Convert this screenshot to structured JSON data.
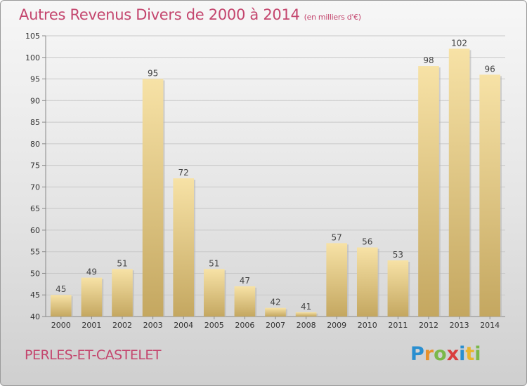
{
  "title": "Autres Revenus Divers de 2000 à 2014",
  "subtitle": "(en milliers d'€)",
  "place": "PERLES-ET-CASTELET",
  "logo": {
    "letters": [
      "P",
      "r",
      "o",
      "x",
      "i",
      "t",
      "i"
    ],
    "colors": [
      "#2a8fd0",
      "#e8912c",
      "#7bb84a",
      "#d93e3e",
      "#2a8fd0",
      "#e8b52c",
      "#7bb84a"
    ]
  },
  "colors": {
    "title": "#c4466e",
    "bar_top": "#f7e2a6",
    "bar_bottom": "#c4a760",
    "grid": "#c8c8c8"
  },
  "chart_data": {
    "type": "bar",
    "categories": [
      "2000",
      "2001",
      "2002",
      "2003",
      "2004",
      "2005",
      "2006",
      "2007",
      "2008",
      "2009",
      "2010",
      "2011",
      "2012",
      "2013",
      "2014"
    ],
    "values": [
      45,
      49,
      51,
      95,
      72,
      51,
      47,
      42,
      41,
      57,
      56,
      53,
      98,
      102,
      96
    ],
    "ylim": [
      40,
      105
    ],
    "yticks": [
      40,
      45,
      50,
      55,
      60,
      65,
      70,
      75,
      80,
      85,
      90,
      95,
      100,
      105
    ],
    "grid": true,
    "xlabel": "",
    "ylabel": ""
  }
}
